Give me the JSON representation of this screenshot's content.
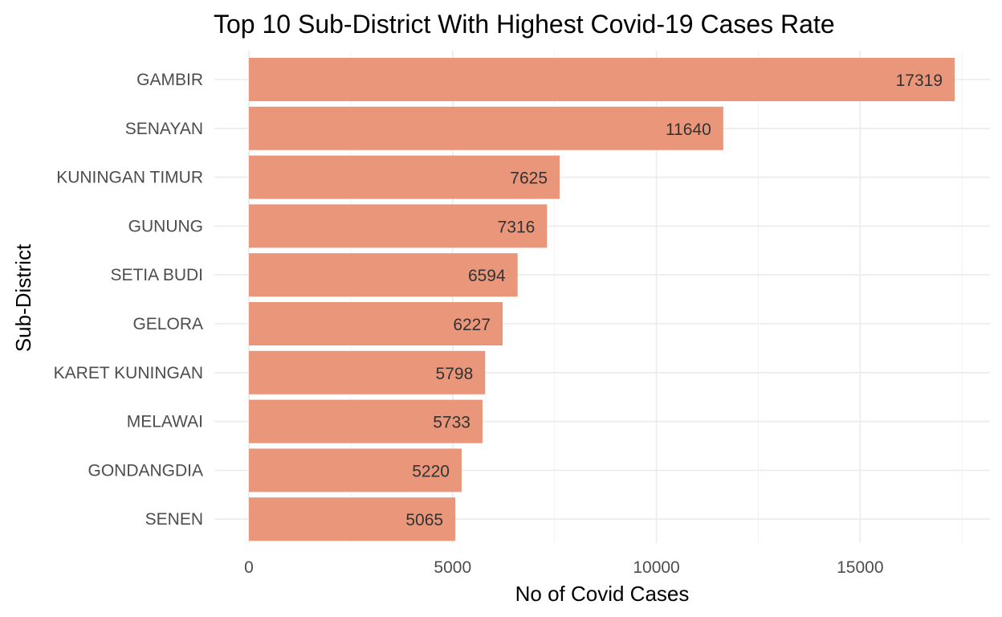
{
  "chart_data": {
    "type": "bar",
    "orientation": "horizontal",
    "title": "Top 10 Sub-District With Highest Covid-19 Cases Rate",
    "xlabel": "No of Covid Cases",
    "ylabel": "Sub-District",
    "categories": [
      "GAMBIR",
      "SENAYAN",
      "KUNINGAN TIMUR",
      "GUNUNG",
      "SETIA BUDI",
      "GELORA",
      "KARET KUNINGAN",
      "MELAWAI",
      "GONDANGDIA",
      "SENEN"
    ],
    "values": [
      17319,
      11640,
      7625,
      7316,
      6594,
      6227,
      5798,
      5733,
      5220,
      5065
    ],
    "xlim": [
      0,
      17319
    ],
    "xticks": [
      0,
      5000,
      10000,
      15000
    ],
    "grid": true,
    "legend": "none",
    "bar_color": "#e9967a"
  }
}
